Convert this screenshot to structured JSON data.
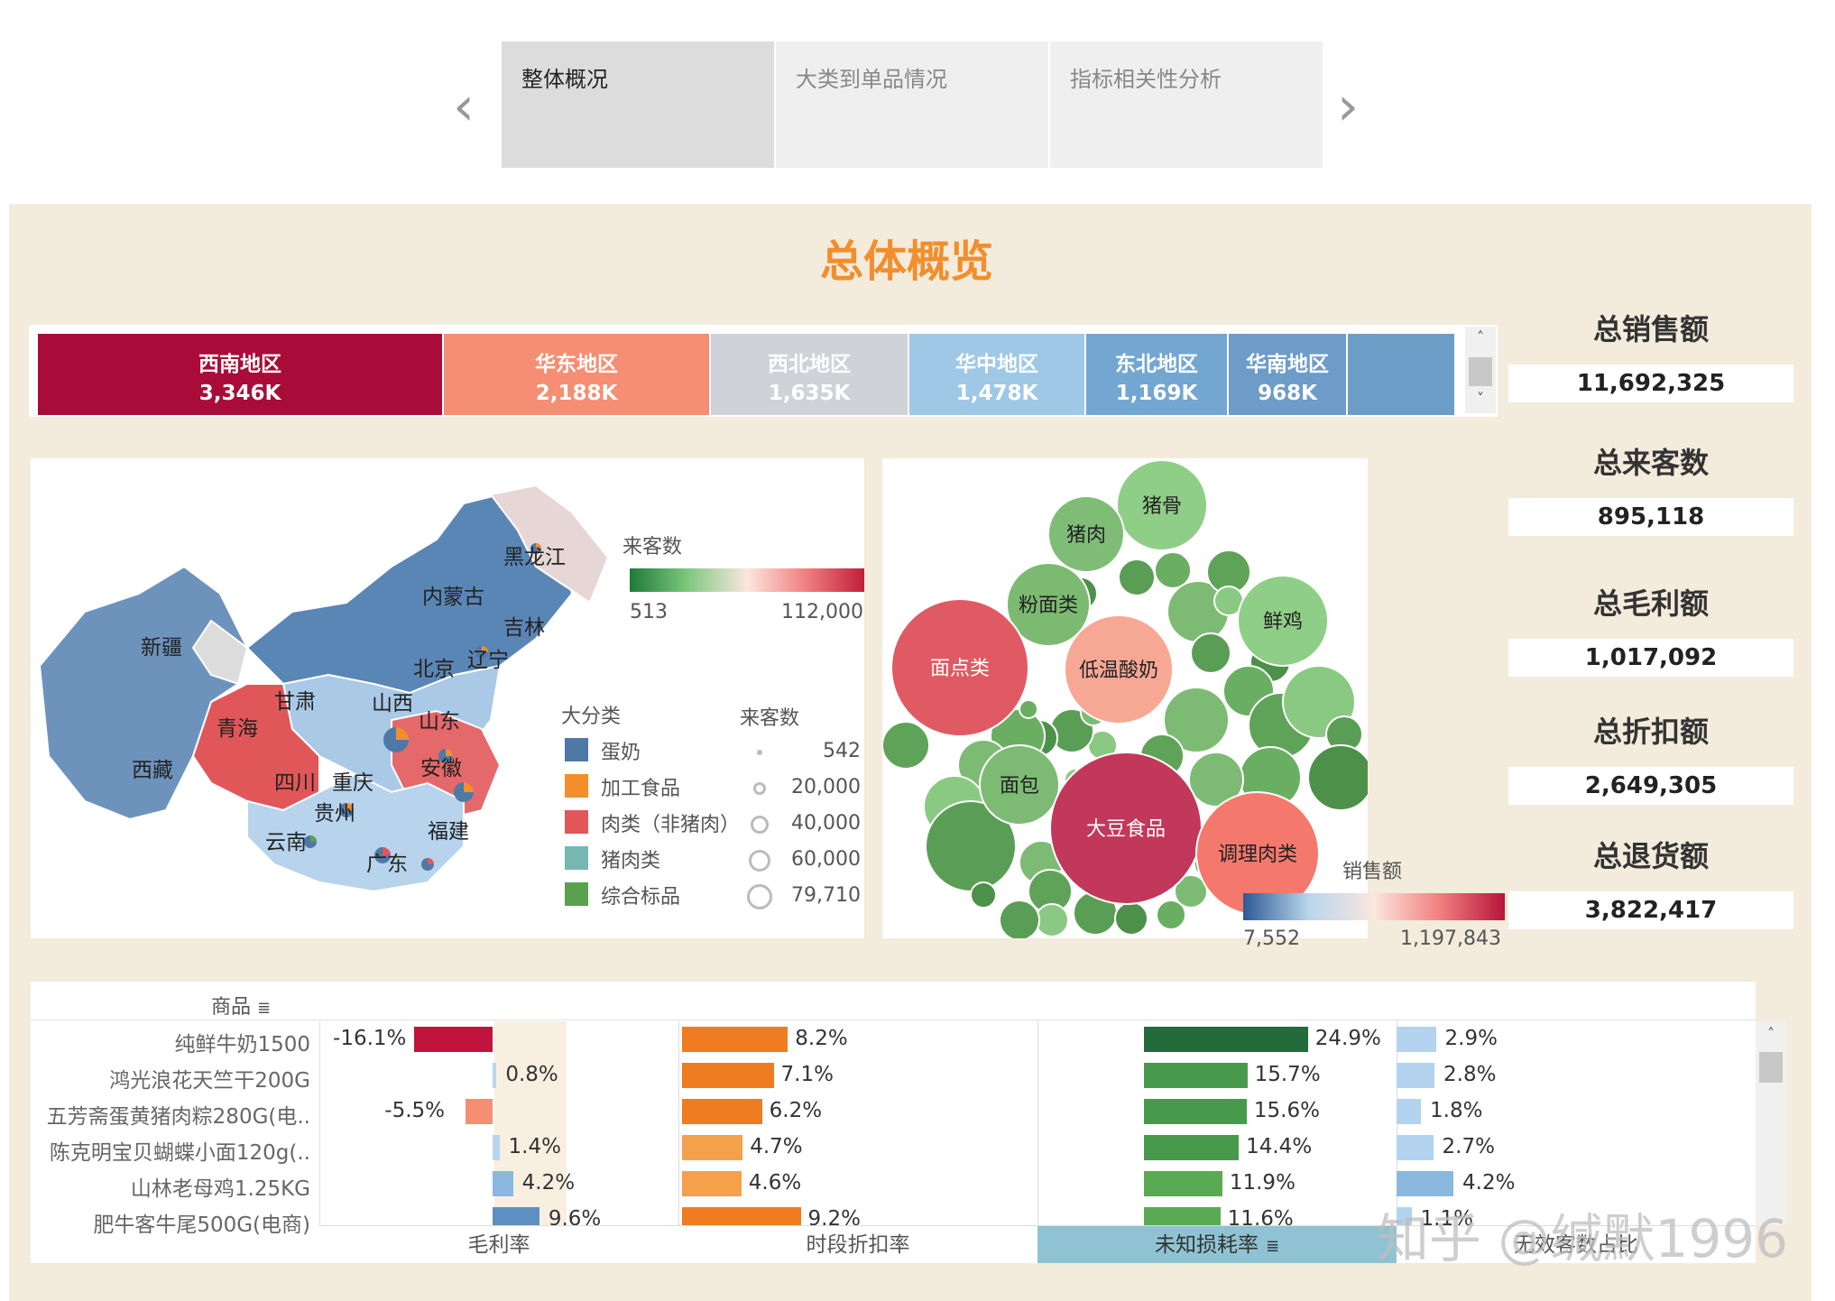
{
  "tabs": [
    {
      "label": "整体概况",
      "active": true
    },
    {
      "label": "大类到单品情况",
      "active": false
    },
    {
      "label": "指标相关性分析",
      "active": false
    }
  ],
  "nav": {
    "prev_icon": "chevron-left-icon",
    "next_icon": "chevron-right-icon"
  },
  "dashboard_title": "总体概览",
  "regions": [
    {
      "name": "西南地区",
      "value": "3,346K",
      "color": "#a90c38"
    },
    {
      "name": "华东地区",
      "value": "2,188K",
      "color": "#f58e72"
    },
    {
      "name": "西北地区",
      "value": "1,635K",
      "color": "#cfd3d8"
    },
    {
      "name": "华中地区",
      "value": "1,478K",
      "color": "#9fc8e6"
    },
    {
      "name": "东北地区",
      "value": "1,169K",
      "color": "#74a6d2"
    },
    {
      "name": "华南地区",
      "value": "968K",
      "color": "#6d9cc8"
    },
    {
      "name": "",
      "value": "",
      "color": "#6b9dc7"
    }
  ],
  "kpis": [
    {
      "label": "总销售额",
      "value": "11,692,325"
    },
    {
      "label": "总来客数",
      "value": "895,118"
    },
    {
      "label": "总毛利额",
      "value": "1,017,092"
    },
    {
      "label": "总折扣额",
      "value": "2,649,305"
    },
    {
      "label": "总退货额",
      "value": "3,822,417"
    }
  ],
  "map": {
    "province_labels": [
      "黑龙江",
      "内蒙古",
      "吉林",
      "辽宁",
      "北京",
      "新疆",
      "甘肃",
      "山西",
      "山东",
      "青海",
      "西藏",
      "四川",
      "重庆",
      "安徽",
      "贵州",
      "福建",
      "云南",
      "广东"
    ],
    "color_legend": {
      "title": "来客数",
      "min": "513",
      "max": "112,000"
    },
    "category_legend": {
      "title": "大分类",
      "items": [
        {
          "label": "蛋奶",
          "color": "#4e79a7"
        },
        {
          "label": "加工食品",
          "color": "#f28e2b"
        },
        {
          "label": "肉类（非猪肉）",
          "color": "#e15759"
        },
        {
          "label": "猪肉类",
          "color": "#76b7b2"
        },
        {
          "label": "综合标品",
          "color": "#59a14f"
        }
      ]
    },
    "size_legend": {
      "title": "来客数",
      "items": [
        "542",
        "20,000",
        "40,000",
        "60,000",
        "79,710"
      ]
    }
  },
  "bubbles": {
    "labels": [
      "猪骨",
      "猪肉",
      "粉面类",
      "鲜鸡",
      "面点类",
      "低温酸奶",
      "面包",
      "大豆食品",
      "调理肉类"
    ],
    "legend": {
      "title": "销售额",
      "min": "7,552",
      "max": "1,197,843"
    }
  },
  "table": {
    "header_label": "商品",
    "rows": [
      {
        "name": "纯鲜牛奶1500",
        "gross": "-16.1%",
        "gross_v": -16.1,
        "disc": "8.2%",
        "disc_v": 8.2,
        "loss": "24.9%",
        "loss_v": 24.9,
        "inv": "2.9%",
        "inv_v": 2.9
      },
      {
        "name": "鸿光浪花天竺干200G",
        "gross": "0.8%",
        "gross_v": 0.8,
        "disc": "7.1%",
        "disc_v": 7.1,
        "loss": "15.7%",
        "loss_v": 15.7,
        "inv": "2.8%",
        "inv_v": 2.8
      },
      {
        "name": "五芳斋蛋黄猪肉粽280G(电..",
        "gross": "-5.5%",
        "gross_v": -5.5,
        "disc": "6.2%",
        "disc_v": 6.2,
        "loss": "15.6%",
        "loss_v": 15.6,
        "inv": "1.8%",
        "inv_v": 1.8
      },
      {
        "name": "陈克明宝贝蝴蝶小面120g(..",
        "gross": "1.4%",
        "gross_v": 1.4,
        "disc": "4.7%",
        "disc_v": 4.7,
        "loss": "14.4%",
        "loss_v": 14.4,
        "inv": "2.7%",
        "inv_v": 2.7
      },
      {
        "name": "山林老母鸡1.25KG",
        "gross": "4.2%",
        "gross_v": 4.2,
        "disc": "4.6%",
        "disc_v": 4.6,
        "loss": "11.9%",
        "loss_v": 11.9,
        "inv": "4.2%",
        "inv_v": 4.2
      },
      {
        "name": "肥牛客牛尾500G(电商)",
        "gross": "9.6%",
        "gross_v": 9.6,
        "disc": "9.2%",
        "disc_v": 9.2,
        "loss": "11.6%",
        "loss_v": 11.6,
        "inv": "1.1%",
        "inv_v": 1.1
      }
    ],
    "columns": [
      "毛利率",
      "时段折扣率",
      "未知损耗率",
      "无效客数占比"
    ]
  },
  "watermark": "知乎 @缄默1996"
}
